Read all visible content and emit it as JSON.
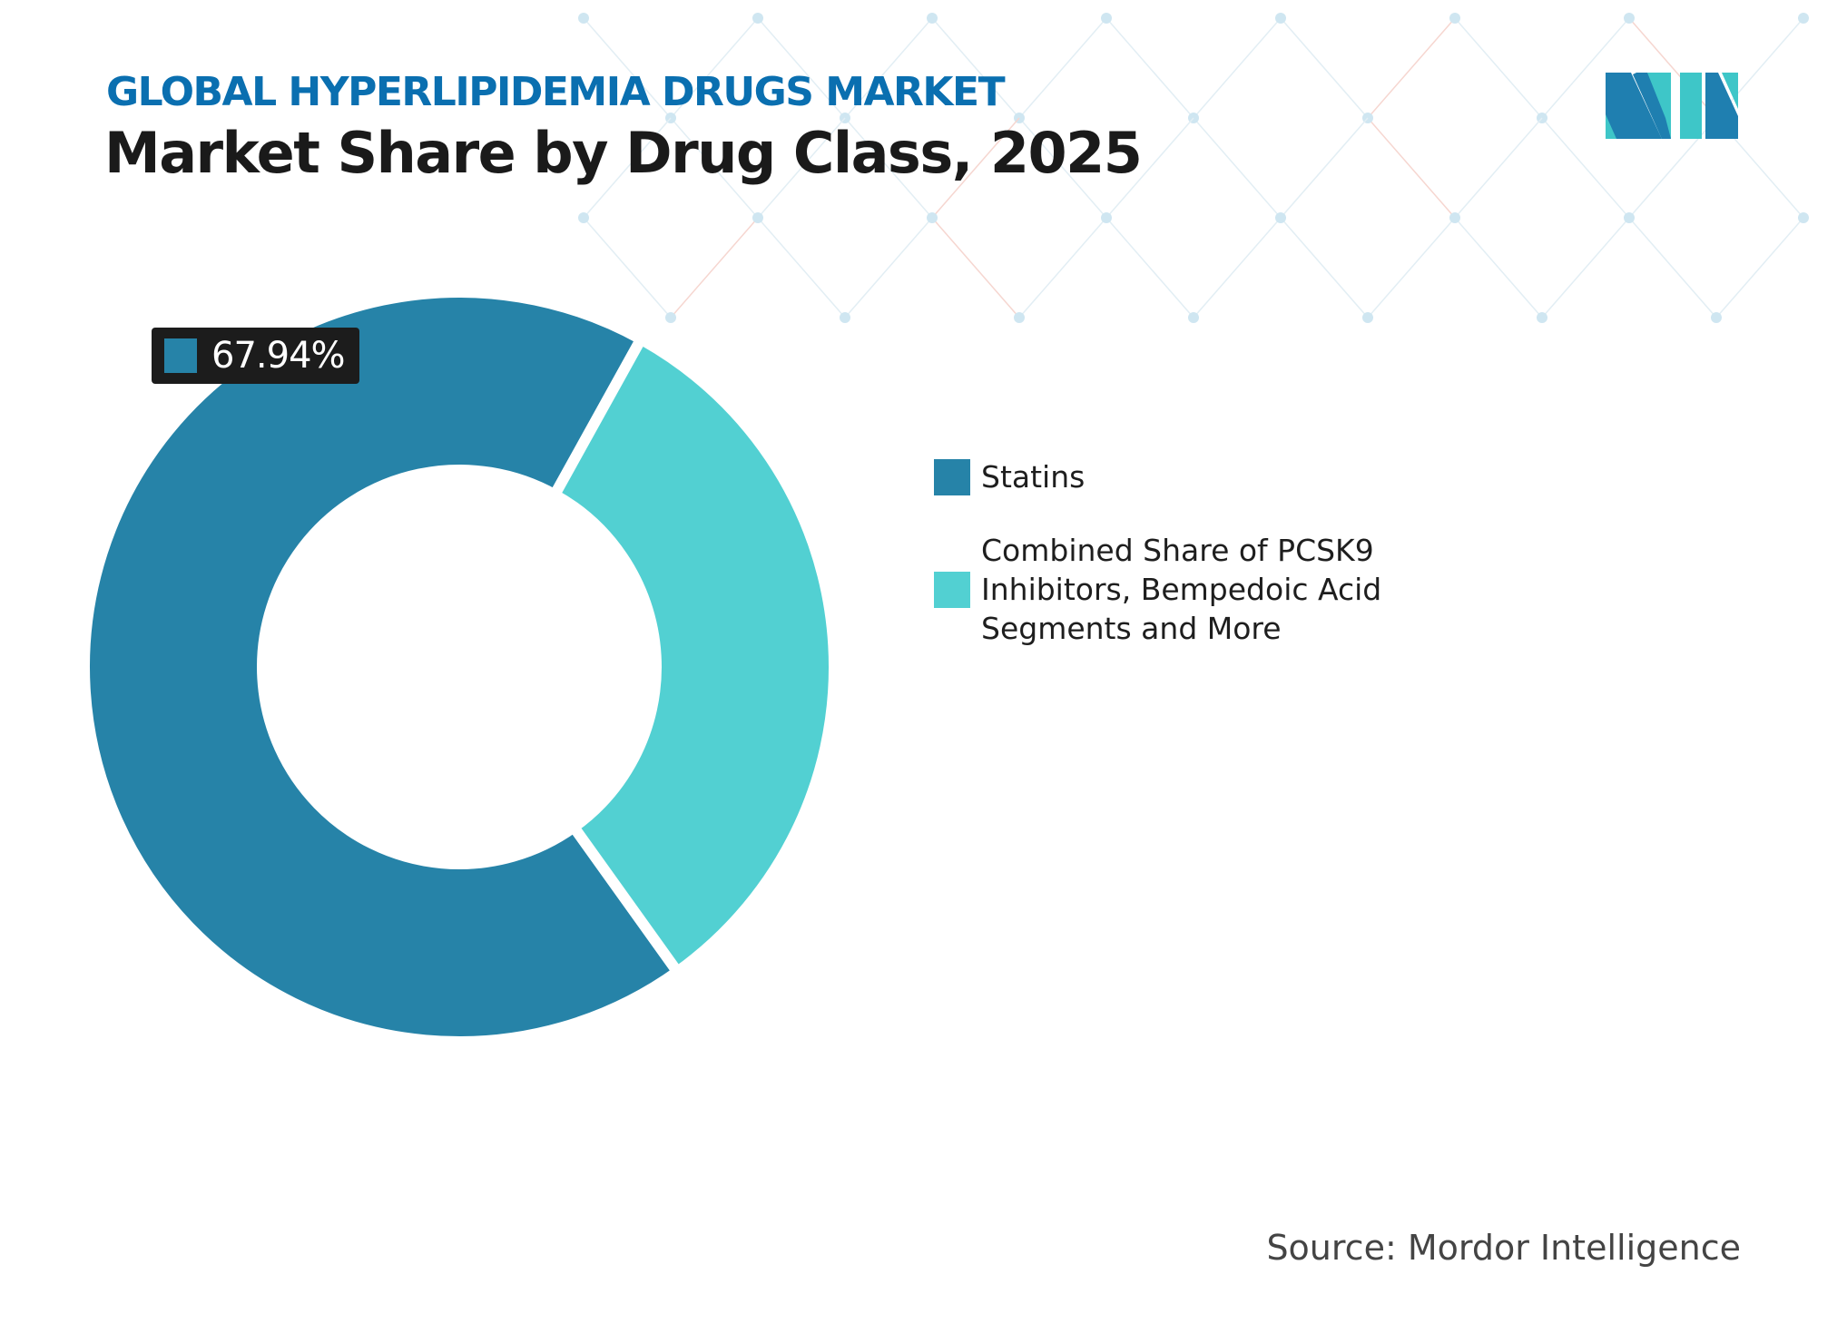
{
  "header": {
    "subtitle": "GLOBAL HYPERLIPIDEMIA DRUGS MARKET",
    "title": "Market Share by Drug Class, 2025"
  },
  "logo": {
    "text": "MI",
    "colors": [
      "#1f7fb0",
      "#3ec6c8"
    ]
  },
  "chart_data": {
    "type": "pie",
    "variant": "donut",
    "title": "Market Share by Drug Class, 2025",
    "categories": [
      "Statins",
      "Combined Share of PCSK9 Inhibitors, Bempedoic Acid Segments and More"
    ],
    "values": [
      67.94,
      32.06
    ],
    "unit": "%",
    "colors": [
      "#2683a8",
      "#52d0d2"
    ],
    "data_labels": [
      {
        "category": "Statins",
        "text": "67.94%"
      }
    ],
    "legend_placement": "right"
  },
  "source": "Source: Mordor Intelligence"
}
